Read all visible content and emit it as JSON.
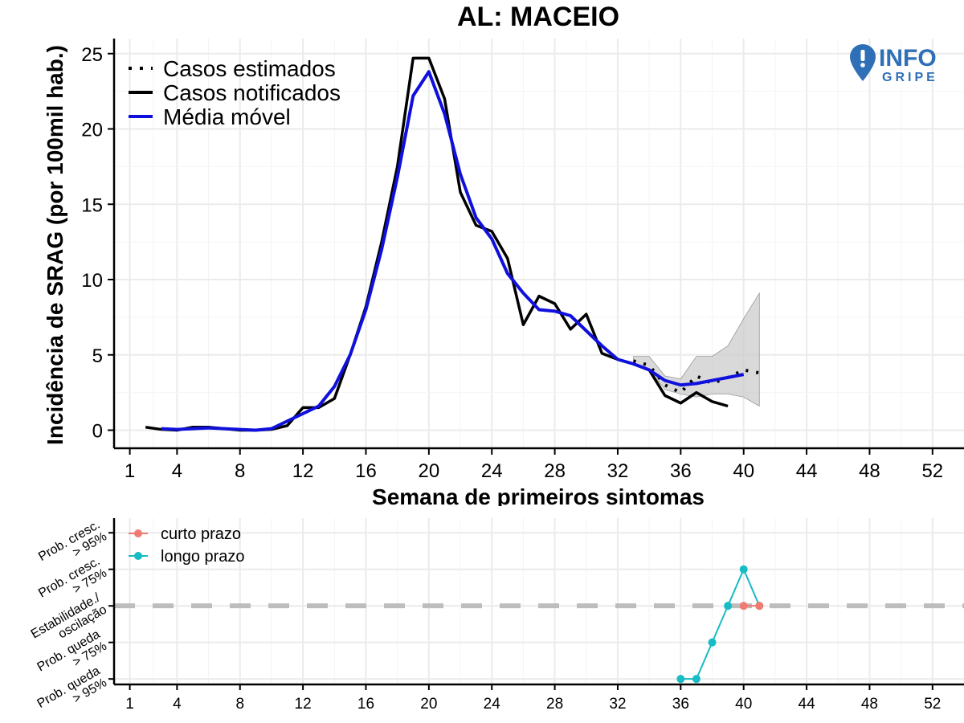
{
  "logo": {
    "line1": "INFO",
    "line2": "GRIPE",
    "color": "#2f6fb7"
  },
  "chart_data": [
    {
      "type": "line",
      "title": "AL: MACEIO",
      "xlabel": "Semana de primeiros sintomas",
      "ylabel": "Incidência de SRAG (por 100mil hab.)",
      "xlim": [
        0,
        54
      ],
      "ylim": [
        -1.2,
        26
      ],
      "x_ticks": [
        1,
        4,
        8,
        12,
        16,
        20,
        24,
        28,
        32,
        36,
        40,
        44,
        48,
        52
      ],
      "y_ticks": [
        0,
        5,
        10,
        15,
        20,
        25
      ],
      "grid": true,
      "legend_position": "top-left",
      "series": [
        {
          "name": "Casos estimados",
          "style": "dotted",
          "color": "#000000",
          "x": [
            33,
            34,
            35,
            36,
            37,
            38,
            39,
            40,
            41
          ],
          "y": [
            4.6,
            4.3,
            3.0,
            2.5,
            3.6,
            3.1,
            3.5,
            4.0,
            3.8
          ]
        },
        {
          "name": "Casos notificados",
          "style": "solid",
          "color": "#000000",
          "x": [
            2,
            3,
            4,
            5,
            6,
            7,
            8,
            9,
            10,
            11,
            12,
            13,
            14,
            15,
            16,
            17,
            18,
            19,
            20,
            21,
            22,
            23,
            24,
            25,
            26,
            27,
            28,
            29,
            30,
            31,
            32,
            33,
            34,
            35,
            36,
            37,
            38,
            39
          ],
          "y": [
            0.2,
            0.05,
            0.0,
            0.2,
            0.2,
            0.1,
            0.0,
            0.0,
            0.05,
            0.3,
            1.5,
            1.5,
            2.1,
            5.0,
            8.2,
            12.5,
            17.5,
            24.7,
            24.7,
            22.0,
            15.8,
            13.6,
            13.2,
            11.4,
            7.0,
            8.9,
            8.4,
            6.7,
            7.7,
            5.1,
            4.7,
            4.4,
            4.0,
            2.3,
            1.8,
            2.5,
            1.9,
            1.6
          ]
        },
        {
          "name": "Média móvel",
          "style": "solid",
          "color": "#1010dd",
          "x": [
            3,
            4,
            5,
            6,
            7,
            8,
            9,
            10,
            11,
            12,
            13,
            14,
            15,
            16,
            17,
            18,
            19,
            20,
            21,
            22,
            23,
            24,
            25,
            26,
            27,
            28,
            29,
            30,
            31,
            32,
            33,
            34,
            35,
            36,
            37,
            38,
            39,
            40
          ],
          "y": [
            0.1,
            0.05,
            0.1,
            0.15,
            0.1,
            0.05,
            0.0,
            0.1,
            0.6,
            1.1,
            1.6,
            2.9,
            5.0,
            8.0,
            12.0,
            16.8,
            22.2,
            23.8,
            21.0,
            17.0,
            14.1,
            12.7,
            10.4,
            9.1,
            8.0,
            7.9,
            7.6,
            6.6,
            5.6,
            4.7,
            4.4,
            4.0,
            3.3,
            3.0,
            3.1,
            3.3,
            3.5,
            3.7
          ]
        }
      ],
      "ci_band": {
        "x": [
          33,
          34,
          35,
          36,
          37,
          38,
          39,
          40,
          41
        ],
        "lower": [
          4.4,
          4.0,
          2.7,
          2.4,
          2.2,
          2.4,
          2.4,
          2.2,
          1.6
        ],
        "upper": [
          4.9,
          4.9,
          3.6,
          3.4,
          4.9,
          4.9,
          5.6,
          7.4,
          9.1
        ],
        "color": "#cccccc"
      }
    },
    {
      "type": "line",
      "xlim": [
        0,
        54
      ],
      "x_ticks": [
        1,
        4,
        8,
        12,
        16,
        20,
        24,
        28,
        32,
        36,
        40,
        44,
        48,
        52
      ],
      "y_levels": [
        "Prob. queda\n> 95%",
        "Prob. queda\n> 75%",
        "Estabilidade./\noscilação",
        "Prob. cresc.\n> 75%",
        "Prob. cresc.\n> 95%"
      ],
      "ylim": [
        -2.15,
        2.4
      ],
      "reference_level": 0,
      "grid": true,
      "legend_position": "top-left",
      "series": [
        {
          "name": "curto prazo",
          "color": "#f07b72",
          "x": [
            40,
            41
          ],
          "y": [
            0,
            0
          ]
        },
        {
          "name": "longo prazo",
          "color": "#17bcc4",
          "x": [
            36,
            37,
            38,
            39,
            40,
            41
          ],
          "y": [
            -2,
            -2,
            -1,
            0,
            1,
            0
          ]
        }
      ]
    }
  ]
}
